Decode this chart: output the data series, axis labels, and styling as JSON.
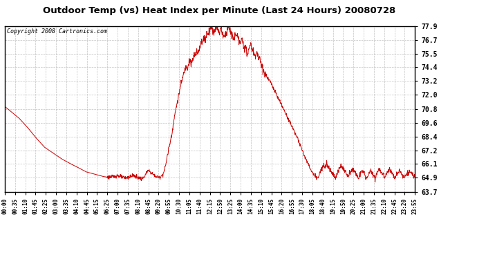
{
  "title": "Outdoor Temp (vs) Heat Index per Minute (Last 24 Hours) 20080728",
  "copyright": "Copyright 2008 Cartronics.com",
  "line_color": "#cc0000",
  "background_color": "#ffffff",
  "grid_color": "#bbbbbb",
  "yticks": [
    63.7,
    64.9,
    66.1,
    67.2,
    68.4,
    69.6,
    70.8,
    72.0,
    73.2,
    74.4,
    75.5,
    76.7,
    77.9
  ],
  "ymin": 63.7,
  "ymax": 77.9,
  "xtick_labels": [
    "00:00",
    "00:35",
    "01:10",
    "01:45",
    "02:25",
    "03:00",
    "03:35",
    "04:10",
    "04:45",
    "05:15",
    "06:25",
    "07:00",
    "07:35",
    "08:10",
    "08:45",
    "09:20",
    "09:55",
    "10:30",
    "11:05",
    "11:40",
    "12:15",
    "12:50",
    "13:25",
    "14:00",
    "14:35",
    "15:10",
    "15:45",
    "16:20",
    "16:55",
    "17:30",
    "18:05",
    "18:40",
    "19:15",
    "19:50",
    "20:25",
    "21:00",
    "21:35",
    "22:10",
    "22:45",
    "23:20",
    "23:55"
  ],
  "waypoints": [
    [
      0,
      71.0
    ],
    [
      20,
      70.6
    ],
    [
      50,
      70.0
    ],
    [
      80,
      69.2
    ],
    [
      110,
      68.3
    ],
    [
      140,
      67.5
    ],
    [
      170,
      67.0
    ],
    [
      200,
      66.5
    ],
    [
      230,
      66.1
    ],
    [
      255,
      65.8
    ],
    [
      270,
      65.6
    ],
    [
      285,
      65.4
    ],
    [
      300,
      65.3
    ],
    [
      315,
      65.2
    ],
    [
      330,
      65.1
    ],
    [
      345,
      65.0
    ],
    [
      360,
      64.95
    ],
    [
      375,
      64.95
    ],
    [
      385,
      65.0
    ],
    [
      390,
      65.05
    ],
    [
      395,
      65.1
    ],
    [
      400,
      65.05
    ],
    [
      405,
      65.0
    ],
    [
      410,
      64.95
    ],
    [
      415,
      64.9
    ],
    [
      420,
      64.9
    ],
    [
      425,
      64.9
    ],
    [
      430,
      64.9
    ],
    [
      435,
      64.95
    ],
    [
      440,
      65.0
    ],
    [
      445,
      65.05
    ],
    [
      450,
      65.1
    ],
    [
      455,
      65.05
    ],
    [
      460,
      65.0
    ],
    [
      465,
      64.95
    ],
    [
      470,
      64.9
    ],
    [
      475,
      64.85
    ],
    [
      480,
      64.8
    ],
    [
      485,
      64.85
    ],
    [
      490,
      65.0
    ],
    [
      495,
      65.2
    ],
    [
      500,
      65.4
    ],
    [
      505,
      65.5
    ],
    [
      510,
      65.4
    ],
    [
      515,
      65.3
    ],
    [
      520,
      65.2
    ],
    [
      525,
      65.1
    ],
    [
      530,
      65.0
    ],
    [
      535,
      64.95
    ],
    [
      540,
      64.9
    ],
    [
      545,
      64.95
    ],
    [
      550,
      65.05
    ],
    [
      555,
      65.2
    ],
    [
      560,
      65.5
    ],
    [
      565,
      66.0
    ],
    [
      570,
      66.7
    ],
    [
      575,
      67.3
    ],
    [
      580,
      67.9
    ],
    [
      585,
      68.5
    ],
    [
      590,
      69.2
    ],
    [
      595,
      70.0
    ],
    [
      600,
      70.7
    ],
    [
      605,
      71.3
    ],
    [
      610,
      71.9
    ],
    [
      615,
      72.5
    ],
    [
      620,
      73.0
    ],
    [
      625,
      73.5
    ],
    [
      630,
      74.0
    ],
    [
      635,
      74.3
    ],
    [
      638,
      74.5
    ],
    [
      641,
      74.3
    ],
    [
      644,
      74.6
    ],
    [
      647,
      74.9
    ],
    [
      650,
      75.0
    ],
    [
      653,
      74.8
    ],
    [
      656,
      74.6
    ],
    [
      659,
      74.9
    ],
    [
      662,
      75.2
    ],
    [
      665,
      75.4
    ],
    [
      668,
      75.3
    ],
    [
      671,
      75.5
    ],
    [
      674,
      75.7
    ],
    [
      677,
      75.6
    ],
    [
      680,
      75.8
    ],
    [
      683,
      76.0
    ],
    [
      686,
      76.3
    ],
    [
      689,
      76.5
    ],
    [
      692,
      76.4
    ],
    [
      695,
      76.6
    ],
    [
      698,
      76.8
    ],
    [
      701,
      77.0
    ],
    [
      704,
      76.8
    ],
    [
      707,
      77.0
    ],
    [
      710,
      77.2
    ],
    [
      713,
      77.4
    ],
    [
      716,
      77.3
    ],
    [
      719,
      77.5
    ],
    [
      722,
      77.7
    ],
    [
      725,
      77.9
    ],
    [
      728,
      77.7
    ],
    [
      731,
      77.5
    ],
    [
      734,
      77.3
    ],
    [
      737,
      77.5
    ],
    [
      740,
      77.7
    ],
    [
      743,
      77.9
    ],
    [
      746,
      77.7
    ],
    [
      749,
      77.5
    ],
    [
      752,
      77.3
    ],
    [
      755,
      77.5
    ],
    [
      758,
      77.7
    ],
    [
      761,
      77.5
    ],
    [
      764,
      77.3
    ],
    [
      767,
      77.1
    ],
    [
      770,
      76.9
    ],
    [
      773,
      77.1
    ],
    [
      776,
      77.3
    ],
    [
      779,
      77.5
    ],
    [
      782,
      77.7
    ],
    [
      785,
      77.9
    ],
    [
      788,
      77.7
    ],
    [
      791,
      77.5
    ],
    [
      794,
      77.3
    ],
    [
      797,
      77.1
    ],
    [
      800,
      76.9
    ],
    [
      803,
      76.7
    ],
    [
      806,
      76.9
    ],
    [
      809,
      77.1
    ],
    [
      812,
      77.3
    ],
    [
      815,
      77.1
    ],
    [
      818,
      76.9
    ],
    [
      821,
      76.7
    ],
    [
      824,
      76.5
    ],
    [
      827,
      76.3
    ],
    [
      830,
      76.5
    ],
    [
      833,
      76.7
    ],
    [
      836,
      76.5
    ],
    [
      839,
      76.3
    ],
    [
      842,
      76.1
    ],
    [
      845,
      75.9
    ],
    [
      848,
      75.7
    ],
    [
      851,
      75.5
    ],
    [
      854,
      75.7
    ],
    [
      857,
      75.9
    ],
    [
      860,
      76.1
    ],
    [
      863,
      76.3
    ],
    [
      866,
      76.1
    ],
    [
      869,
      75.9
    ],
    [
      872,
      75.7
    ],
    [
      875,
      75.5
    ],
    [
      878,
      75.3
    ],
    [
      881,
      75.5
    ],
    [
      884,
      75.7
    ],
    [
      887,
      75.5
    ],
    [
      890,
      75.3
    ],
    [
      893,
      75.1
    ],
    [
      896,
      74.9
    ],
    [
      899,
      74.7
    ],
    [
      902,
      74.5
    ],
    [
      905,
      74.3
    ],
    [
      908,
      74.1
    ],
    [
      911,
      73.9
    ],
    [
      920,
      73.5
    ],
    [
      930,
      73.2
    ],
    [
      940,
      72.7
    ],
    [
      950,
      72.2
    ],
    [
      960,
      71.7
    ],
    [
      970,
      71.2
    ],
    [
      980,
      70.7
    ],
    [
      990,
      70.2
    ],
    [
      1000,
      69.7
    ],
    [
      1010,
      69.2
    ],
    [
      1020,
      68.7
    ],
    [
      1030,
      68.1
    ],
    [
      1040,
      67.5
    ],
    [
      1050,
      66.9
    ],
    [
      1060,
      66.3
    ],
    [
      1070,
      65.8
    ],
    [
      1080,
      65.3
    ],
    [
      1090,
      64.95
    ],
    [
      1100,
      64.9
    ],
    [
      1110,
      65.5
    ],
    [
      1120,
      66.0
    ],
    [
      1130,
      66.1
    ],
    [
      1135,
      65.9
    ],
    [
      1140,
      65.7
    ],
    [
      1145,
      65.5
    ],
    [
      1150,
      65.3
    ],
    [
      1155,
      65.1
    ],
    [
      1160,
      64.95
    ],
    [
      1165,
      65.1
    ],
    [
      1170,
      65.4
    ],
    [
      1175,
      65.7
    ],
    [
      1180,
      66.0
    ],
    [
      1185,
      65.8
    ],
    [
      1190,
      65.6
    ],
    [
      1195,
      65.4
    ],
    [
      1200,
      65.2
    ],
    [
      1205,
      65.0
    ],
    [
      1210,
      65.2
    ],
    [
      1215,
      65.5
    ],
    [
      1220,
      65.7
    ],
    [
      1225,
      65.5
    ],
    [
      1230,
      65.3
    ],
    [
      1235,
      65.1
    ],
    [
      1240,
      64.9
    ],
    [
      1245,
      65.1
    ],
    [
      1250,
      65.3
    ],
    [
      1255,
      65.5
    ],
    [
      1260,
      65.3
    ],
    [
      1265,
      65.1
    ],
    [
      1270,
      64.9
    ],
    [
      1275,
      65.1
    ],
    [
      1280,
      65.3
    ],
    [
      1285,
      65.5
    ],
    [
      1290,
      65.3
    ],
    [
      1295,
      65.1
    ],
    [
      1300,
      64.9
    ],
    [
      1305,
      65.2
    ],
    [
      1310,
      65.5
    ],
    [
      1315,
      65.7
    ],
    [
      1320,
      65.5
    ],
    [
      1325,
      65.3
    ],
    [
      1330,
      65.1
    ],
    [
      1335,
      64.9
    ],
    [
      1340,
      65.2
    ],
    [
      1345,
      65.5
    ],
    [
      1350,
      65.7
    ],
    [
      1355,
      65.5
    ],
    [
      1360,
      65.3
    ],
    [
      1365,
      65.1
    ],
    [
      1370,
      64.9
    ],
    [
      1375,
      65.1
    ],
    [
      1380,
      65.3
    ],
    [
      1385,
      65.5
    ],
    [
      1390,
      65.3
    ],
    [
      1395,
      65.1
    ],
    [
      1400,
      65.0
    ],
    [
      1410,
      65.2
    ],
    [
      1420,
      65.4
    ],
    [
      1430,
      65.2
    ],
    [
      1440,
      65.0
    ]
  ]
}
